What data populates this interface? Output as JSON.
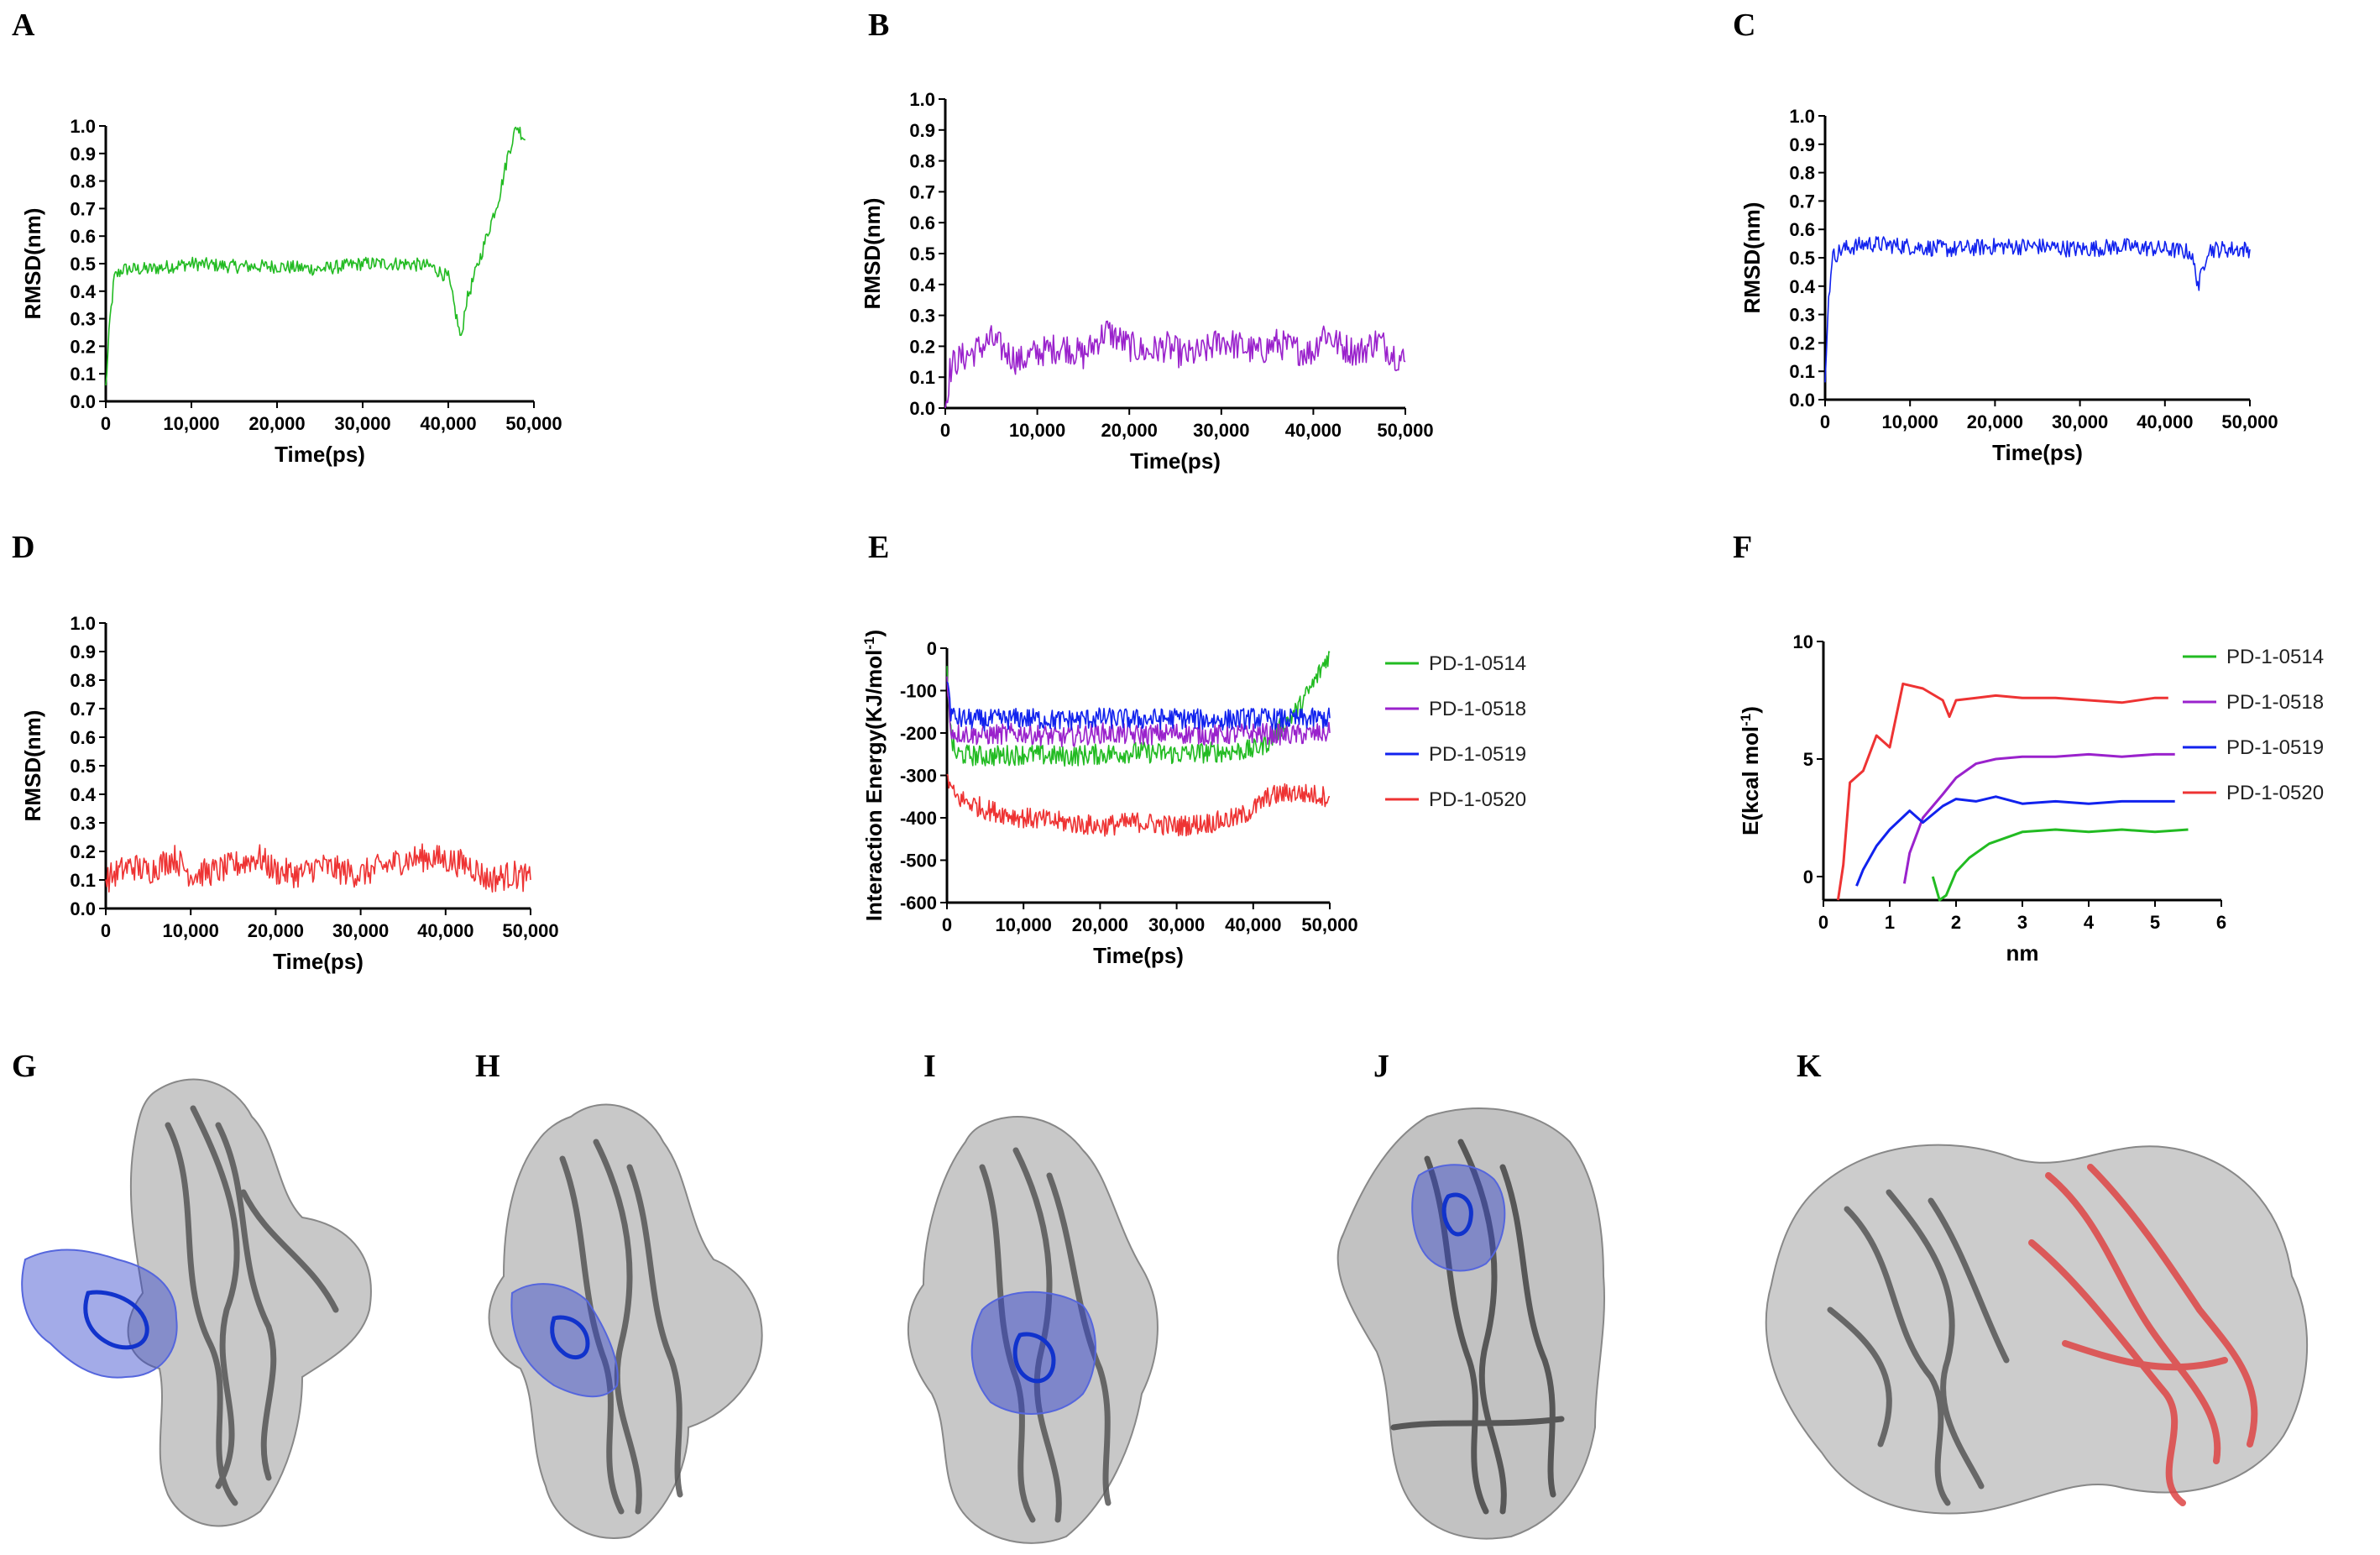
{
  "figure": {
    "panel_letters": [
      "A",
      "B",
      "C",
      "D",
      "E",
      "F",
      "G",
      "H",
      "I",
      "J",
      "K"
    ]
  },
  "colors": {
    "PD-1-0514": "#22bb22",
    "PD-1-0518": "#9a22cc",
    "PD-1-0519": "#1122ee",
    "PD-1-0520": "#ee3333",
    "protein_gray": "#9a9a9a",
    "ligand_blue": "#3344cc",
    "partner_red": "#dd4444"
  },
  "chart_data": [
    {
      "panel": "A",
      "type": "line",
      "title": "",
      "xlabel": "Time(ps)",
      "ylabel": "RMSD(nm)",
      "xlim": [
        0,
        50000
      ],
      "ylim": [
        0,
        1.0
      ],
      "xticks": [
        "0",
        "10,000",
        "20,000",
        "30,000",
        "40,000",
        "50,000"
      ],
      "yticks": [
        "0.0",
        "0.1",
        "0.2",
        "0.3",
        "0.4",
        "0.5",
        "0.6",
        "0.7",
        "0.8",
        "0.9",
        "1.0"
      ],
      "series": [
        {
          "color": "#22bb22",
          "x": [
            0,
            500,
            1000,
            2000,
            5000,
            10000,
            15000,
            20000,
            25000,
            30000,
            35000,
            38000,
            40000,
            41000,
            41500,
            42000,
            43000,
            44000,
            45000,
            46000,
            47000,
            48000,
            49000
          ],
          "y": [
            0.05,
            0.3,
            0.45,
            0.48,
            0.48,
            0.5,
            0.49,
            0.49,
            0.48,
            0.5,
            0.5,
            0.49,
            0.45,
            0.3,
            0.22,
            0.35,
            0.45,
            0.55,
            0.65,
            0.75,
            0.9,
            1.0,
            0.95
          ]
        }
      ]
    },
    {
      "panel": "B",
      "type": "line",
      "title": "",
      "xlabel": "Time(ps)",
      "ylabel": "RMSD(nm)",
      "xlim": [
        0,
        50000
      ],
      "ylim": [
        0,
        1.0
      ],
      "xticks": [
        "0",
        "10,000",
        "20,000",
        "30,000",
        "40,000",
        "50,000"
      ],
      "yticks": [
        "0.0",
        "0.1",
        "0.2",
        "0.3",
        "0.4",
        "0.5",
        "0.6",
        "0.7",
        "0.8",
        "0.9",
        "1.0"
      ],
      "series": [
        {
          "color": "#9a22cc",
          "x": [
            0,
            500,
            1000,
            3000,
            5000,
            8000,
            10000,
            13000,
            15000,
            17500,
            20000,
            22000,
            24000,
            26000,
            28000,
            30000,
            32000,
            34000,
            36000,
            38000,
            40000,
            41000,
            43000,
            45000,
            47000,
            49000,
            50000
          ],
          "y": [
            0.0,
            0.12,
            0.15,
            0.18,
            0.22,
            0.15,
            0.18,
            0.2,
            0.17,
            0.25,
            0.2,
            0.18,
            0.2,
            0.17,
            0.18,
            0.22,
            0.2,
            0.18,
            0.21,
            0.19,
            0.18,
            0.25,
            0.2,
            0.18,
            0.22,
            0.17,
            0.15
          ]
        }
      ]
    },
    {
      "panel": "C",
      "type": "line",
      "title": "",
      "xlabel": "Time(ps)",
      "ylabel": "RMSD(nm)",
      "xlim": [
        0,
        50000
      ],
      "ylim": [
        0,
        1.0
      ],
      "xticks": [
        "0",
        "10,000",
        "20,000",
        "30,000",
        "40,000",
        "50,000"
      ],
      "yticks": [
        "0.0",
        "0.1",
        "0.2",
        "0.3",
        "0.4",
        "0.5",
        "0.6",
        "0.7",
        "0.8",
        "0.9",
        "1.0"
      ],
      "series": [
        {
          "color": "#1122ee",
          "x": [
            0,
            300,
            800,
            2000,
            5000,
            10000,
            15000,
            20000,
            25000,
            30000,
            35000,
            40000,
            43000,
            44000,
            45000,
            48000,
            50000
          ],
          "y": [
            0.05,
            0.3,
            0.5,
            0.53,
            0.55,
            0.54,
            0.53,
            0.54,
            0.54,
            0.53,
            0.54,
            0.53,
            0.52,
            0.4,
            0.53,
            0.53,
            0.53
          ]
        }
      ]
    },
    {
      "panel": "D",
      "type": "line",
      "title": "",
      "xlabel": "Time(ps)",
      "ylabel": "RMSD(nm)",
      "xlim": [
        0,
        50000
      ],
      "ylim": [
        0,
        1.0
      ],
      "xticks": [
        "0",
        "10,000",
        "20,000",
        "30,000",
        "40,000",
        "50,000"
      ],
      "yticks": [
        "0.0",
        "0.1",
        "0.2",
        "0.3",
        "0.4",
        "0.5",
        "0.6",
        "0.7",
        "0.8",
        "0.9",
        "1.0"
      ],
      "series": [
        {
          "color": "#ee3333",
          "x": [
            0,
            1000,
            3000,
            5000,
            8000,
            10000,
            13000,
            15000,
            18000,
            20000,
            23000,
            25000,
            28000,
            30000,
            33000,
            35000,
            38000,
            40000,
            43000,
            45000,
            48000,
            50000
          ],
          "y": [
            0.1,
            0.12,
            0.15,
            0.13,
            0.18,
            0.12,
            0.13,
            0.15,
            0.18,
            0.13,
            0.12,
            0.15,
            0.13,
            0.12,
            0.15,
            0.17,
            0.18,
            0.17,
            0.15,
            0.1,
            0.12,
            0.1
          ]
        }
      ]
    },
    {
      "panel": "E",
      "type": "line",
      "title": "",
      "xlabel": "Time(ps)",
      "ylabel": "Interaction Energy(KJ/mol",
      "ylabel_superscript": "-1",
      "ylabel_suffix": ")",
      "xlim": [
        0,
        50000
      ],
      "ylim": [
        -600,
        0
      ],
      "xticks": [
        "0",
        "10,000",
        "20,000",
        "30,000",
        "40,000",
        "50,000"
      ],
      "yticks": [
        "0",
        "-100",
        "-200",
        "-300",
        "-400",
        "-500",
        "-600"
      ],
      "legend": "right",
      "series": [
        {
          "name": "PD-1-0514",
          "color": "#22bb22",
          "x": [
            0,
            500,
            1000,
            5000,
            10000,
            15000,
            20000,
            25000,
            30000,
            35000,
            40000,
            42000,
            44000,
            46000,
            48000,
            50000
          ],
          "y": [
            -50,
            -200,
            -250,
            -255,
            -250,
            -255,
            -250,
            -245,
            -250,
            -245,
            -240,
            -220,
            -180,
            -140,
            -80,
            -10
          ]
        },
        {
          "name": "PD-1-0518",
          "color": "#9a22cc",
          "x": [
            0,
            500,
            1000,
            5000,
            10000,
            15000,
            20000,
            25000,
            30000,
            35000,
            40000,
            45000,
            50000
          ],
          "y": [
            -80,
            -190,
            -200,
            -205,
            -200,
            -210,
            -200,
            -205,
            -200,
            -205,
            -200,
            -205,
            -200
          ]
        },
        {
          "name": "PD-1-0519",
          "color": "#1122ee",
          "x": [
            0,
            500,
            1000,
            5000,
            10000,
            15000,
            20000,
            25000,
            30000,
            35000,
            40000,
            45000,
            50000
          ],
          "y": [
            -60,
            -150,
            -165,
            -170,
            -165,
            -170,
            -165,
            -168,
            -165,
            -170,
            -165,
            -168,
            -165
          ]
        },
        {
          "name": "PD-1-0520",
          "color": "#ee3333",
          "x": [
            0,
            500,
            1000,
            5000,
            10000,
            15000,
            20000,
            25000,
            30000,
            35000,
            38000,
            40000,
            42000,
            45000,
            50000
          ],
          "y": [
            -300,
            -330,
            -350,
            -380,
            -400,
            -410,
            -420,
            -410,
            -420,
            -410,
            -400,
            -380,
            -350,
            -340,
            -350
          ]
        }
      ]
    },
    {
      "panel": "F",
      "type": "line",
      "title": "",
      "xlabel": "nm",
      "ylabel": "E(kcal mol",
      "ylabel_superscript": "-1",
      "ylabel_suffix": ")",
      "xlim": [
        0,
        6
      ],
      "ylim": [
        -1,
        10
      ],
      "xticks": [
        "0",
        "1",
        "2",
        "3",
        "4",
        "5",
        "6"
      ],
      "yticks": [
        "0",
        "5",
        "10"
      ],
      "yticks_values": [
        0,
        5,
        10
      ],
      "legend": "right",
      "series": [
        {
          "name": "PD-1-0514",
          "color": "#22bb22",
          "x": [
            1.65,
            1.75,
            1.85,
            2.0,
            2.2,
            2.5,
            3.0,
            3.5,
            4.0,
            4.5,
            5.0,
            5.5
          ],
          "y": [
            0.0,
            -1.0,
            -0.8,
            0.2,
            0.8,
            1.4,
            1.9,
            2.0,
            1.9,
            2.0,
            1.9,
            2.0
          ]
        },
        {
          "name": "PD-1-0518",
          "color": "#9a22cc",
          "x": [
            1.22,
            1.3,
            1.5,
            1.8,
            2.0,
            2.3,
            2.6,
            3.0,
            3.5,
            4.0,
            4.5,
            5.0,
            5.3
          ],
          "y": [
            -0.3,
            1.0,
            2.5,
            3.5,
            4.2,
            4.8,
            5.0,
            5.1,
            5.1,
            5.2,
            5.1,
            5.2,
            5.2
          ]
        },
        {
          "name": "PD-1-0519",
          "color": "#1122ee",
          "x": [
            0.5,
            0.6,
            0.8,
            1.0,
            1.3,
            1.5,
            1.8,
            2.0,
            2.3,
            2.6,
            3.0,
            3.5,
            4.0,
            4.5,
            5.0,
            5.3
          ],
          "y": [
            -0.4,
            0.3,
            1.3,
            2.0,
            2.8,
            2.3,
            3.0,
            3.3,
            3.2,
            3.4,
            3.1,
            3.2,
            3.1,
            3.2,
            3.2,
            3.2
          ]
        },
        {
          "name": "PD-1-0520",
          "color": "#ee3333",
          "x": [
            0.22,
            0.3,
            0.4,
            0.6,
            0.8,
            1.0,
            1.2,
            1.5,
            1.8,
            1.9,
            2.0,
            2.3,
            2.6,
            3.0,
            3.5,
            4.0,
            4.5,
            5.0,
            5.2
          ],
          "y": [
            -1.0,
            0.5,
            4.0,
            4.5,
            6.0,
            5.5,
            8.2,
            8.0,
            7.5,
            6.8,
            7.5,
            7.6,
            7.7,
            7.6,
            7.6,
            7.5,
            7.4,
            7.6,
            7.6
          ]
        }
      ]
    }
  ]
}
